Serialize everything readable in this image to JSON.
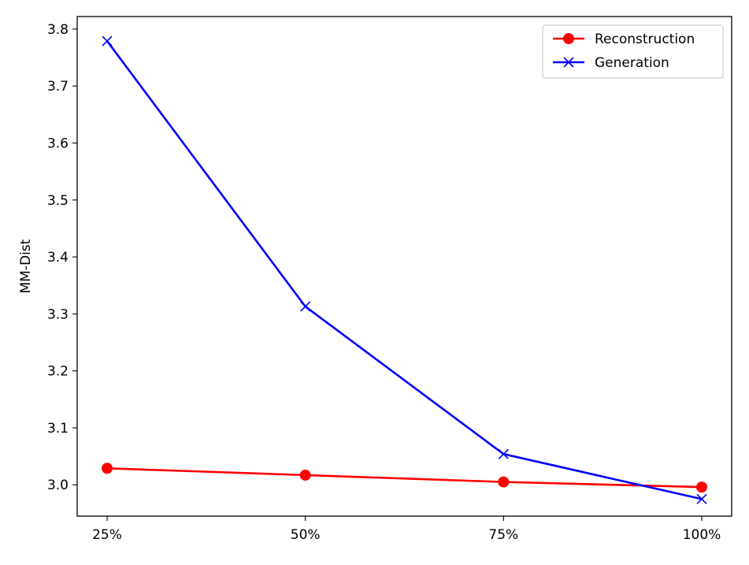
{
  "chart_data": {
    "type": "line",
    "title": "",
    "xlabel": "",
    "ylabel": "MM-Dist",
    "categories": [
      "25%",
      "50%",
      "75%",
      "100%"
    ],
    "ylim": [
      2.945,
      3.822
    ],
    "yticks": [
      3.0,
      3.1,
      3.2,
      3.3,
      3.4,
      3.5,
      3.6,
      3.7,
      3.8
    ],
    "ytick_labels": [
      "3.0",
      "3.1",
      "3.2",
      "3.3",
      "3.4",
      "3.5",
      "3.6",
      "3.7",
      "3.8"
    ],
    "grid": false,
    "legend": "top-right",
    "series": [
      {
        "name": "Reconstruction",
        "values": [
          3.029,
          3.017,
          3.005,
          2.996
        ],
        "color": "#ff0000",
        "marker": "circle"
      },
      {
        "name": "Generation",
        "values": [
          3.779,
          3.313,
          3.054,
          2.975
        ],
        "color": "#0000ff",
        "marker": "x"
      }
    ]
  }
}
